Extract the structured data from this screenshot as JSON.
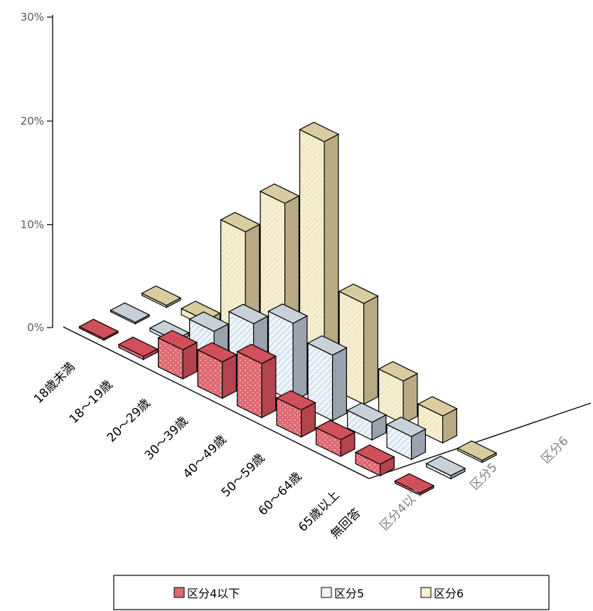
{
  "chart_data": {
    "type": "bar",
    "categories": [
      "18歳未満",
      "18～19歳",
      "20～29歳",
      "30～39歳",
      "40～49歳",
      "50～59歳",
      "60～64歳",
      "65歳以上",
      "無回答"
    ],
    "series": [
      {
        "name": "区分4以下",
        "values": [
          0.1,
          0.3,
          2.8,
          3.5,
          5.2,
          2.6,
          1.6,
          1.1,
          0.2
        ],
        "color": "#e06a72"
      },
      {
        "name": "区分5",
        "values": [
          0.1,
          0.3,
          3.0,
          5.6,
          7.5,
          6.3,
          1.7,
          2.2,
          0.3
        ],
        "color": "#dce8f2"
      },
      {
        "name": "区分6",
        "values": [
          0.2,
          0.6,
          11.0,
          15.6,
          23.4,
          9.7,
          4.1,
          2.6,
          0.2
        ],
        "color": "#f4eccb"
      }
    ],
    "yaxis": {
      "ticks": [
        "0%",
        "10%",
        "20%",
        "30%"
      ],
      "min": 0,
      "max": 30
    },
    "legend": {
      "placement": "bottom",
      "labels": [
        "区分4以下",
        "区分5",
        "区分6"
      ]
    },
    "style": "3d-column"
  }
}
